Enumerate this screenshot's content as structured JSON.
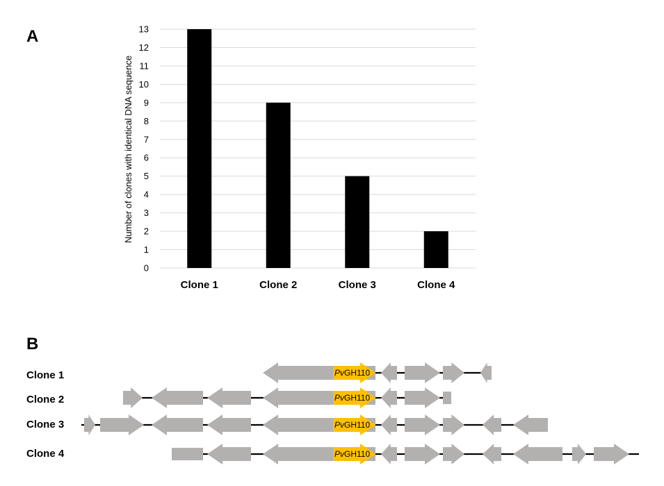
{
  "panel_a": {
    "letter": "A"
  },
  "panel_b": {
    "letter": "B",
    "gene_label_prefix": "Pv",
    "gene_label_suffix": "GH110",
    "colors": {
      "gene": "#b3b1b0",
      "highlight": "#ffc000",
      "line": "#000000"
    },
    "rows": [
      {
        "label": "Clone 1"
      },
      {
        "label": "Clone 2"
      },
      {
        "label": "Clone 3"
      },
      {
        "label": "Clone 4"
      }
    ]
  },
  "chart_data": {
    "type": "bar",
    "categories": [
      "Clone 1",
      "Clone 2",
      "Clone 3",
      "Clone 4"
    ],
    "values": [
      13,
      9,
      5,
      2
    ],
    "title": "",
    "xlabel": "",
    "ylabel": "Number of clones with identical DNA sequence",
    "ylim": [
      0,
      13
    ],
    "yticks": [
      0,
      1,
      2,
      3,
      4,
      5,
      6,
      7,
      8,
      9,
      10,
      11,
      12,
      13
    ],
    "grid": true,
    "bar_color": "#000000",
    "grid_color": "#d9d9d9"
  }
}
